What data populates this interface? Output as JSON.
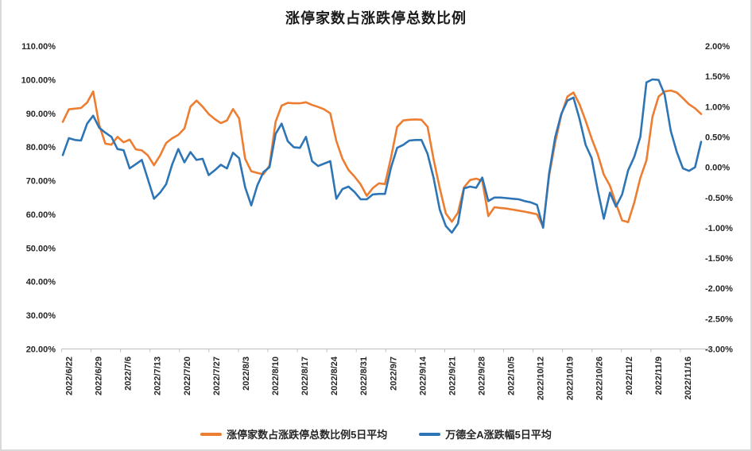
{
  "window": {
    "background": "#ffffff",
    "edge_color": "#d9d9d9",
    "axis_line_color": "#c0c0c0",
    "text_color": "#262626"
  },
  "chart_data": {
    "type": "line",
    "title": "涨停家数占涨跌停总数比例",
    "grid": false,
    "legend_position": "bottom",
    "left_axis_range": [
      20,
      110
    ],
    "right_axis_range": [
      -3,
      2
    ],
    "left_axis_tick_labels": [
      "110.00%",
      "100.00%",
      "90.00%",
      "80.00%",
      "70.00%",
      "60.00%",
      "50.00%",
      "40.00%",
      "30.00%",
      "20.00%"
    ],
    "right_axis_tick_labels": [
      "2.00%",
      "1.50%",
      "1.00%",
      "0.50%",
      "0.00%",
      "-0.50%",
      "-1.00%",
      "-1.50%",
      "-2.00%",
      "-2.50%",
      "-3.00%"
    ],
    "x_tick_labels": [
      "2022/6/22",
      "2022/6/29",
      "2022/7/6",
      "2022/7/13",
      "2022/7/20",
      "2022/7/27",
      "2022/8/3",
      "2022/8/10",
      "2022/8/17",
      "2022/8/24",
      "2022/8/31",
      "2022/9/7",
      "2022/9/14",
      "2022/9/21",
      "2022/9/28",
      "2022/10/5",
      "2022/10/12",
      "2022/10/19",
      "2022/10/26",
      "2022/11/2",
      "2022/11/9",
      "2022/11/16"
    ],
    "series": [
      {
        "name": "涨停家数占涨跌停总数比例5日平均",
        "axis": "left",
        "unit": "%",
        "color": "#ED7D31",
        "values": [
          87.5,
          91.2,
          91.4,
          91.6,
          93.2,
          96.5,
          86.5,
          81.0,
          80.7,
          83.0,
          81.4,
          82.2,
          79.3,
          79.0,
          77.5,
          74.6,
          77.5,
          81.2,
          82.6,
          83.6,
          85.5,
          92.0,
          93.8,
          92.0,
          89.8,
          88.3,
          87.1,
          87.9,
          91.3,
          88.5,
          76.5,
          72.8,
          72.3,
          71.9,
          74.5,
          87.5,
          92.3,
          93.1,
          93.0,
          93.0,
          93.3,
          92.5,
          91.9,
          91.2,
          90.0,
          81.8,
          76.5,
          73.2,
          71.2,
          68.9,
          65.5,
          67.8,
          69.2,
          69.0,
          77.0,
          86.0,
          87.9,
          88.1,
          88.2,
          88.1,
          86.0,
          76.3,
          67.8,
          60.3,
          57.8,
          60.5,
          68.0,
          70.2,
          70.6,
          70.0,
          59.5,
          62.1,
          61.9,
          61.7,
          61.4,
          61.1,
          60.8,
          60.4,
          60.0,
          56.3,
          71.5,
          81.5,
          89.5,
          95.0,
          96.2,
          92.7,
          87.8,
          82.5,
          77.8,
          71.8,
          68.5,
          63.2,
          58.2,
          57.7,
          63.5,
          70.8,
          76.0,
          89.0,
          95.0,
          96.5,
          96.8,
          96.2,
          94.5,
          92.7,
          91.5,
          89.8
        ]
      },
      {
        "name": "万德全A涨跌幅5日平均",
        "axis": "right",
        "unit": "%",
        "color": "#2E75B6",
        "values": [
          0.2,
          0.48,
          0.45,
          0.44,
          0.72,
          0.85,
          0.65,
          0.57,
          0.5,
          0.3,
          0.28,
          -0.02,
          0.05,
          0.12,
          -0.2,
          -0.52,
          -0.42,
          -0.28,
          0.05,
          0.3,
          0.08,
          0.25,
          0.12,
          0.14,
          -0.13,
          -0.05,
          0.04,
          -0.02,
          0.24,
          0.15,
          -0.33,
          -0.63,
          -0.3,
          -0.08,
          0.0,
          0.55,
          0.72,
          0.43,
          0.33,
          0.32,
          0.5,
          0.1,
          0.02,
          0.06,
          0.1,
          -0.52,
          -0.36,
          -0.32,
          -0.41,
          -0.53,
          -0.53,
          -0.45,
          -0.44,
          -0.44,
          0.0,
          0.32,
          0.37,
          0.44,
          0.45,
          0.45,
          0.22,
          -0.18,
          -0.7,
          -0.97,
          -1.08,
          -0.93,
          -0.35,
          -0.32,
          -0.34,
          -0.17,
          -0.56,
          -0.5,
          -0.5,
          -0.51,
          -0.52,
          -0.53,
          -0.56,
          -0.58,
          -0.62,
          -1.0,
          -0.1,
          0.5,
          0.88,
          1.1,
          1.15,
          0.8,
          0.37,
          0.15,
          -0.38,
          -0.85,
          -0.42,
          -0.65,
          -0.45,
          -0.05,
          0.17,
          0.5,
          1.4,
          1.45,
          1.44,
          1.2,
          0.6,
          0.25,
          -0.02,
          -0.06,
          0.0,
          0.42
        ]
      }
    ]
  }
}
